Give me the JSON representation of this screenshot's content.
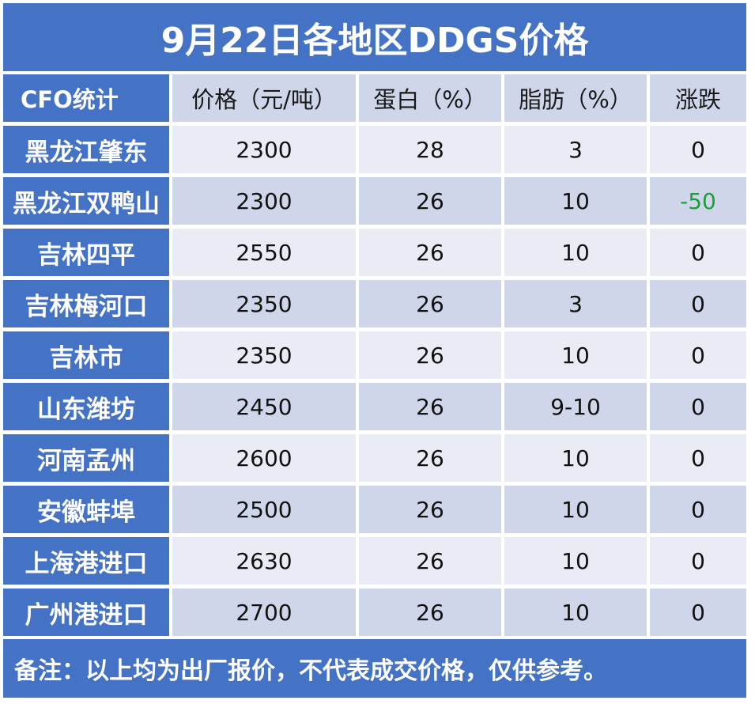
{
  "title": "9月22日各地区DDGS价格",
  "headers": [
    "CFO统计",
    "价格（元/吨）",
    "蛋白（%）",
    "脂肪（%）",
    "涨跌"
  ],
  "rows": [
    {
      "region": "黑龙江肇东",
      "price": "2300",
      "protein": "28",
      "fat": "3",
      "change": "0"
    },
    {
      "region": "黑龙江双鸭山",
      "price": "2300",
      "protein": "26",
      "fat": "10",
      "change": "-50"
    },
    {
      "region": "吉林四平",
      "price": "2550",
      "protein": "26",
      "fat": "10",
      "change": "0"
    },
    {
      "region": "吉林梅河口",
      "price": "2350",
      "protein": "26",
      "fat": "3",
      "change": "0"
    },
    {
      "region": "吉林市",
      "price": "2350",
      "protein": "26",
      "fat": "10",
      "change": "0"
    },
    {
      "region": "山东潍坊",
      "price": "2450",
      "protein": "26",
      "fat": "9-10",
      "change": "0"
    },
    {
      "region": "河南孟州",
      "price": "2600",
      "protein": "26",
      "fat": "10",
      "change": "0"
    },
    {
      "region": "安徽蚌埠",
      "price": "2500",
      "protein": "26",
      "fat": "10",
      "change": "0"
    },
    {
      "region": "上海港进口",
      "price": "2630",
      "protein": "26",
      "fat": "10",
      "change": "0"
    },
    {
      "region": "广州港进口",
      "price": "2700",
      "protein": "26",
      "fat": "10",
      "change": "0"
    }
  ],
  "note": "备注：以上均为出厂报价，不代表成交价格，仅供参考。",
  "colors": {
    "header_blue": "#4472c4",
    "row_light": "#e9ecf5",
    "row_dark": "#cfd6ea",
    "negative_change": "#19a03a"
  }
}
